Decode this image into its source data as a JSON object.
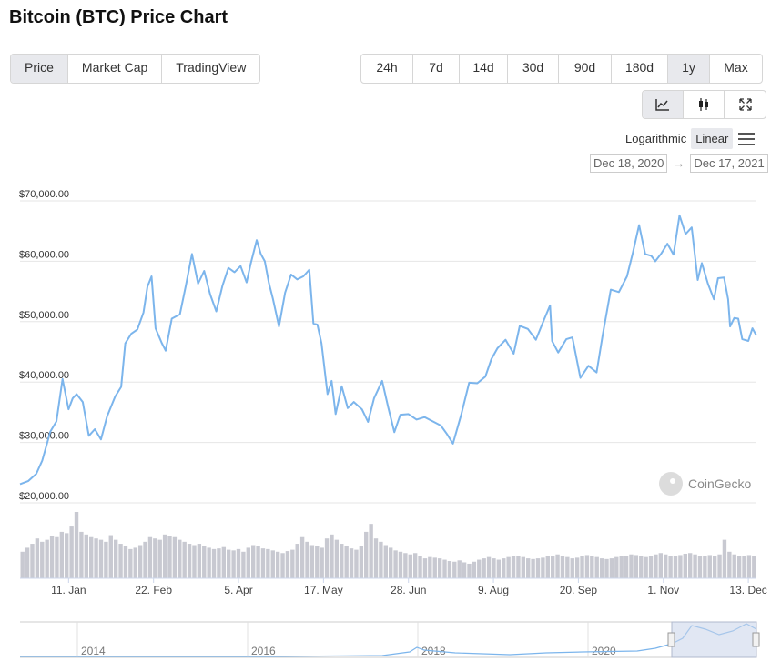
{
  "page": {
    "title": "Bitcoin (BTC) Price Chart"
  },
  "tabs": [
    {
      "label": "Price",
      "active": true
    },
    {
      "label": "Market Cap",
      "active": false
    },
    {
      "label": "TradingView",
      "active": false
    }
  ],
  "ranges": [
    {
      "label": "24h",
      "active": false
    },
    {
      "label": "7d",
      "active": false
    },
    {
      "label": "14d",
      "active": false
    },
    {
      "label": "30d",
      "active": false
    },
    {
      "label": "90d",
      "active": false
    },
    {
      "label": "180d",
      "active": false
    },
    {
      "label": "1y",
      "active": true
    },
    {
      "label": "Max",
      "active": false
    }
  ],
  "view_buttons": [
    {
      "icon": "line-chart-icon",
      "active": true
    },
    {
      "icon": "candlestick-icon",
      "active": false
    },
    {
      "icon": "fullscreen-icon",
      "active": false
    }
  ],
  "scale": {
    "log_label": "Logarithmic",
    "linear_label": "Linear",
    "selected": "Linear"
  },
  "date_range": {
    "from": "Dec 18, 2020",
    "arrow": "→",
    "to": "Dec 17, 2021"
  },
  "brand": {
    "name": "CoinGecko"
  },
  "colors": {
    "line": "#7cb5ec",
    "volume": "#c8c9d1",
    "grid": "#e6e6e6",
    "navigator_fill": "#c8d3ea"
  },
  "chart_data": {
    "type": "line",
    "y_tick_labels": [
      "$20,000.00",
      "$30,000.00",
      "$40,000.00",
      "$50,000.00",
      "$60,000.00",
      "$70,000.00"
    ],
    "y_ticks": [
      20000,
      30000,
      40000,
      50000,
      60000,
      70000
    ],
    "ylim": [
      20000,
      70000
    ],
    "x_tick_labels": [
      "11. Jan",
      "22. Feb",
      "5. Apr",
      "17. May",
      "28. Jun",
      "9. Aug",
      "20. Sep",
      "1. Nov",
      "13. Dec"
    ],
    "x_ticks": [
      "2021-01-11",
      "2021-02-22",
      "2021-04-05",
      "2021-05-17",
      "2021-06-28",
      "2021-08-09",
      "2021-09-20",
      "2021-11-01",
      "2021-12-13"
    ],
    "x_range": [
      "2020-12-18",
      "2021-12-17"
    ],
    "series": [
      {
        "points": [
          [
            "2020-12-18",
            23100
          ],
          [
            "2020-12-22",
            23600
          ],
          [
            "2020-12-26",
            24800
          ],
          [
            "2020-12-29",
            27000
          ],
          [
            "2021-01-02",
            31800
          ],
          [
            "2021-01-05",
            33500
          ],
          [
            "2021-01-08",
            40500
          ],
          [
            "2021-01-11",
            35500
          ],
          [
            "2021-01-13",
            37300
          ],
          [
            "2021-01-15",
            38000
          ],
          [
            "2021-01-18",
            36700
          ],
          [
            "2021-01-21",
            31100
          ],
          [
            "2021-01-24",
            32200
          ],
          [
            "2021-01-27",
            30500
          ],
          [
            "2021-01-30",
            34300
          ],
          [
            "2021-02-03",
            37600
          ],
          [
            "2021-02-06",
            39200
          ],
          [
            "2021-02-08",
            46400
          ],
          [
            "2021-02-11",
            48000
          ],
          [
            "2021-02-14",
            48700
          ],
          [
            "2021-02-17",
            51500
          ],
          [
            "2021-02-19",
            55800
          ],
          [
            "2021-02-21",
            57500
          ],
          [
            "2021-02-23",
            48900
          ],
          [
            "2021-02-26",
            46500
          ],
          [
            "2021-02-28",
            45200
          ],
          [
            "2021-03-03",
            50500
          ],
          [
            "2021-03-07",
            51200
          ],
          [
            "2021-03-10",
            56000
          ],
          [
            "2021-03-13",
            61200
          ],
          [
            "2021-03-16",
            56300
          ],
          [
            "2021-03-19",
            58400
          ],
          [
            "2021-03-22",
            54500
          ],
          [
            "2021-03-25",
            51700
          ],
          [
            "2021-03-28",
            55900
          ],
          [
            "2021-03-31",
            58900
          ],
          [
            "2021-04-03",
            58200
          ],
          [
            "2021-04-06",
            59200
          ],
          [
            "2021-04-09",
            56500
          ],
          [
            "2021-04-11",
            59600
          ],
          [
            "2021-04-14",
            63500
          ],
          [
            "2021-04-16",
            61200
          ],
          [
            "2021-04-18",
            60000
          ],
          [
            "2021-04-20",
            56400
          ],
          [
            "2021-04-22",
            53800
          ],
          [
            "2021-04-25",
            49200
          ],
          [
            "2021-04-28",
            54800
          ],
          [
            "2021-05-01",
            57800
          ],
          [
            "2021-05-04",
            57000
          ],
          [
            "2021-05-07",
            57500
          ],
          [
            "2021-05-10",
            58600
          ],
          [
            "2021-05-12",
            49700
          ],
          [
            "2021-05-14",
            49500
          ],
          [
            "2021-05-16",
            46400
          ],
          [
            "2021-05-19",
            38000
          ],
          [
            "2021-05-21",
            40200
          ],
          [
            "2021-05-23",
            34700
          ],
          [
            "2021-05-26",
            39300
          ],
          [
            "2021-05-29",
            35700
          ],
          [
            "2021-06-01",
            36700
          ],
          [
            "2021-06-05",
            35500
          ],
          [
            "2021-06-08",
            33400
          ],
          [
            "2021-06-11",
            37300
          ],
          [
            "2021-06-15",
            40200
          ],
          [
            "2021-06-18",
            35800
          ],
          [
            "2021-06-21",
            31700
          ],
          [
            "2021-06-24",
            34600
          ],
          [
            "2021-06-28",
            34700
          ],
          [
            "2021-07-02",
            33800
          ],
          [
            "2021-07-06",
            34200
          ],
          [
            "2021-07-10",
            33500
          ],
          [
            "2021-07-14",
            32800
          ],
          [
            "2021-07-17",
            31400
          ],
          [
            "2021-07-20",
            29800
          ],
          [
            "2021-07-24",
            34500
          ],
          [
            "2021-07-28",
            39900
          ],
          [
            "2021-08-01",
            39800
          ],
          [
            "2021-08-05",
            40900
          ],
          [
            "2021-08-08",
            43800
          ],
          [
            "2021-08-11",
            45600
          ],
          [
            "2021-08-15",
            47000
          ],
          [
            "2021-08-19",
            44700
          ],
          [
            "2021-08-22",
            49300
          ],
          [
            "2021-08-26",
            48800
          ],
          [
            "2021-08-30",
            47000
          ],
          [
            "2021-09-03",
            50300
          ],
          [
            "2021-09-06",
            52700
          ],
          [
            "2021-09-07",
            46800
          ],
          [
            "2021-09-10",
            44900
          ],
          [
            "2021-09-14",
            47100
          ],
          [
            "2021-09-17",
            47400
          ],
          [
            "2021-09-21",
            40700
          ],
          [
            "2021-09-25",
            42700
          ],
          [
            "2021-09-29",
            41600
          ],
          [
            "2021-10-02",
            47800
          ],
          [
            "2021-10-06",
            55300
          ],
          [
            "2021-10-10",
            54900
          ],
          [
            "2021-10-14",
            57500
          ],
          [
            "2021-10-17",
            61500
          ],
          [
            "2021-10-20",
            66000
          ],
          [
            "2021-10-23",
            61200
          ],
          [
            "2021-10-26",
            60900
          ],
          [
            "2021-10-28",
            60000
          ],
          [
            "2021-10-31",
            61300
          ],
          [
            "2021-11-03",
            62900
          ],
          [
            "2021-11-06",
            61100
          ],
          [
            "2021-11-09",
            67600
          ],
          [
            "2021-11-12",
            64500
          ],
          [
            "2021-11-15",
            65600
          ],
          [
            "2021-11-18",
            56900
          ],
          [
            "2021-11-20",
            59700
          ],
          [
            "2021-11-23",
            56300
          ],
          [
            "2021-11-26",
            53700
          ],
          [
            "2021-11-28",
            57200
          ],
          [
            "2021-12-01",
            57300
          ],
          [
            "2021-12-03",
            53700
          ],
          [
            "2021-12-04",
            49200
          ],
          [
            "2021-12-06",
            50600
          ],
          [
            "2021-12-08",
            50500
          ],
          [
            "2021-12-10",
            47100
          ],
          [
            "2021-12-13",
            46800
          ],
          [
            "2021-12-15",
            48900
          ],
          [
            "2021-12-17",
            47700
          ]
        ]
      }
    ],
    "volume": {
      "description": "daily traded volume bars (no axis scale shown)",
      "relative_values": [
        0.4,
        0.46,
        0.52,
        0.6,
        0.55,
        0.58,
        0.63,
        0.62,
        0.7,
        0.68,
        0.78,
        1.0,
        0.7,
        0.66,
        0.62,
        0.6,
        0.58,
        0.55,
        0.65,
        0.58,
        0.52,
        0.48,
        0.44,
        0.46,
        0.5,
        0.55,
        0.62,
        0.6,
        0.58,
        0.66,
        0.64,
        0.62,
        0.58,
        0.55,
        0.52,
        0.5,
        0.52,
        0.48,
        0.46,
        0.44,
        0.45,
        0.47,
        0.43,
        0.42,
        0.44,
        0.4,
        0.46,
        0.5,
        0.48,
        0.45,
        0.44,
        0.42,
        0.4,
        0.38,
        0.41,
        0.43,
        0.52,
        0.62,
        0.55,
        0.5,
        0.48,
        0.46,
        0.6,
        0.66,
        0.58,
        0.52,
        0.48,
        0.45,
        0.43,
        0.48,
        0.7,
        0.82,
        0.6,
        0.55,
        0.5,
        0.46,
        0.42,
        0.4,
        0.38,
        0.36,
        0.38,
        0.34,
        0.3,
        0.32,
        0.31,
        0.3,
        0.28,
        0.26,
        0.25,
        0.27,
        0.24,
        0.22,
        0.25,
        0.28,
        0.3,
        0.32,
        0.3,
        0.28,
        0.3,
        0.32,
        0.34,
        0.33,
        0.32,
        0.3,
        0.29,
        0.3,
        0.31,
        0.33,
        0.34,
        0.36,
        0.34,
        0.32,
        0.3,
        0.31,
        0.33,
        0.35,
        0.34,
        0.32,
        0.3,
        0.29,
        0.3,
        0.32,
        0.33,
        0.34,
        0.36,
        0.35,
        0.33,
        0.32,
        0.34,
        0.36,
        0.38,
        0.36,
        0.34,
        0.33,
        0.35,
        0.37,
        0.38,
        0.36,
        0.34,
        0.33,
        0.35,
        0.34,
        0.36,
        0.58,
        0.4,
        0.36,
        0.34,
        0.33,
        0.35,
        0.34
      ]
    },
    "navigator": {
      "x_tick_labels": [
        "2014",
        "2016",
        "2018",
        "2020"
      ],
      "selected_range": [
        "2020-12-18",
        "2021-12-17"
      ]
    }
  }
}
